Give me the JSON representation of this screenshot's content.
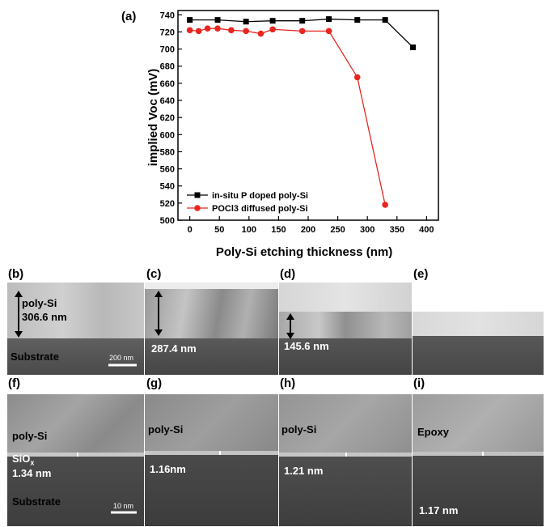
{
  "panel_labels": {
    "a": "(a)",
    "b": "(b)",
    "c": "(c)",
    "d": "(d)",
    "e": "(e)",
    "f": "(f)",
    "g": "(g)",
    "h": "(h)",
    "i": "(i)"
  },
  "chart_data": {
    "type": "line",
    "xlabel": "Poly-Si etching thickness (nm)",
    "ylabel": "implied Voc (mV)",
    "xlim": [
      -20,
      420
    ],
    "ylim": [
      500,
      745
    ],
    "xticks": [
      0,
      50,
      100,
      150,
      200,
      250,
      300,
      350,
      400
    ],
    "yticks": [
      500,
      520,
      540,
      560,
      580,
      600,
      620,
      640,
      660,
      680,
      700,
      720,
      740
    ],
    "grid": false,
    "legend_position": "bottom-left",
    "series": [
      {
        "name": "in-situ P doped poly-Si",
        "color": "#000000",
        "marker": "square",
        "x": [
          0,
          47,
          95,
          140,
          190,
          235,
          283,
          330,
          377
        ],
        "y": [
          734,
          734,
          732,
          733,
          733,
          735,
          734,
          734,
          702
        ]
      },
      {
        "name": "POCl3 diffused poly-Si",
        "color": "#e8261f",
        "marker": "circle",
        "x": [
          0,
          15,
          30,
          47,
          70,
          95,
          120,
          140,
          190,
          235,
          283,
          330
        ],
        "y": [
          722,
          721,
          724,
          724,
          722,
          721,
          718,
          723,
          721,
          721,
          667,
          518
        ]
      }
    ]
  },
  "annotations": {
    "b_layer": "poly-Si",
    "b_thickness": "306.6 nm",
    "b_substrate": "Substrate",
    "b_scale": "200 nm",
    "c_thickness": "287.4 nm",
    "d_thickness": "145.6 nm",
    "f_polysi": "poly-Si",
    "f_siox": "SiO",
    "f_siox_sub": "x",
    "f_thick": "1.34 nm",
    "f_substrate": "Substrate",
    "f_scale": "10 nm",
    "g_polysi": "poly-Si",
    "g_thick": "1.16nm",
    "h_polysi": "poly-Si",
    "h_thick": "1.21 nm",
    "i_epoxy": "Epoxy",
    "i_thick": "1.17 nm"
  }
}
